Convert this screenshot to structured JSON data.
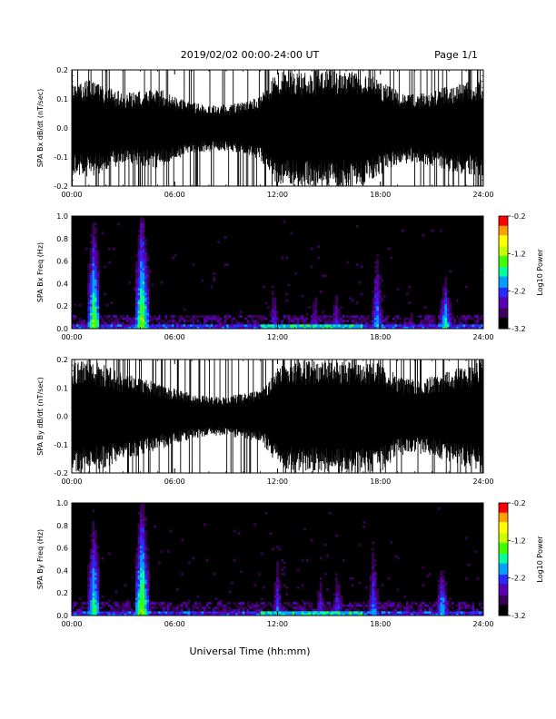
{
  "header": {
    "title": "2019/02/02  00:00-24:00 UT",
    "page": "Page 1/1"
  },
  "x_axis_label": "Universal Time (hh:mm)",
  "colors": {
    "background": "#ffffff",
    "plot_background": "#000000",
    "colorscale": [
      "#000000",
      "#3a005a",
      "#5a00b4",
      "#2a2aff",
      "#00a0ff",
      "#00ffa0",
      "#40ff00",
      "#c8ff00",
      "#ffff00",
      "#ffa000",
      "#ff0000"
    ]
  },
  "chart_data": [
    {
      "type": "line",
      "panel": "bx-waveform",
      "ylabel": "SPA Bx dB/dt (nT/sec)",
      "xlim": [
        0,
        24
      ],
      "ylim": [
        -0.2,
        0.2
      ],
      "x_ticks": [
        "00:00",
        "06:00",
        "12:00",
        "18:00",
        "24:00"
      ],
      "y_ticks": [
        "0.2",
        "0.1",
        "0.0",
        "-0.1",
        "-0.2"
      ],
      "y_tick_values": [
        0.2,
        0.1,
        0.0,
        -0.1,
        -0.2
      ],
      "envelope": {
        "x": [
          0,
          1,
          2,
          3,
          4,
          5,
          6,
          7,
          8,
          9,
          10,
          11,
          12,
          13,
          14,
          15,
          16,
          17,
          18,
          19,
          20,
          21,
          22,
          23,
          24
        ],
        "amplitude": [
          0.16,
          0.17,
          0.15,
          0.12,
          0.13,
          0.14,
          0.11,
          0.09,
          0.08,
          0.08,
          0.09,
          0.11,
          0.2,
          0.2,
          0.2,
          0.2,
          0.2,
          0.2,
          0.16,
          0.13,
          0.12,
          0.13,
          0.15,
          0.16,
          0.17
        ]
      }
    },
    {
      "type": "heatmap",
      "panel": "bx-spectrogram",
      "ylabel": "SPA Bx Freq (Hz)",
      "xlim": [
        0,
        24
      ],
      "ylim": [
        0.0,
        1.0
      ],
      "x_ticks": [
        "00:00",
        "06:00",
        "12:00",
        "18:00",
        "24:00"
      ],
      "y_ticks": [
        "1.0",
        "0.8",
        "0.6",
        "0.4",
        "0.2",
        "0.0"
      ],
      "y_tick_values": [
        1.0,
        0.8,
        0.6,
        0.4,
        0.2,
        0.0
      ],
      "colorbar_label": "Log10 Power",
      "colorbar_ticks": [
        "-0.2",
        "-1.2",
        "-2.2",
        "-3.2"
      ],
      "colorbar_tick_values": [
        -0.2,
        -1.2,
        -2.2,
        -3.2
      ],
      "zlim": [
        -3.2,
        -0.2
      ],
      "bursts": [
        {
          "t": 1.3,
          "power": -1.0,
          "height": 0.95
        },
        {
          "t": 4.1,
          "power": -0.9,
          "height": 1.0
        },
        {
          "t": 11.8,
          "power": -2.0,
          "height": 0.85
        },
        {
          "t": 14.2,
          "power": -2.0,
          "height": 0.7
        },
        {
          "t": 15.4,
          "power": -1.9,
          "height": 0.6
        },
        {
          "t": 17.8,
          "power": -1.6,
          "height": 0.95
        },
        {
          "t": 21.8,
          "power": -1.3,
          "height": 0.5
        }
      ]
    },
    {
      "type": "line",
      "panel": "by-waveform",
      "ylabel": "SPA By dB/dt (nT/sec)",
      "xlim": [
        0,
        24
      ],
      "ylim": [
        -0.2,
        0.2
      ],
      "x_ticks": [
        "00:00",
        "06:00",
        "12:00",
        "18:00",
        "24:00"
      ],
      "y_ticks": [
        "0.2",
        "0.1",
        "0.0",
        "-0.1",
        "-0.2"
      ],
      "y_tick_values": [
        0.2,
        0.1,
        0.0,
        -0.1,
        -0.2
      ],
      "envelope": {
        "x": [
          0,
          1,
          2,
          3,
          4,
          5,
          6,
          7,
          8,
          9,
          10,
          11,
          12,
          13,
          14,
          15,
          16,
          17,
          18,
          19,
          20,
          21,
          22,
          23,
          24
        ],
        "amplitude": [
          0.2,
          0.2,
          0.18,
          0.15,
          0.14,
          0.12,
          0.1,
          0.08,
          0.07,
          0.07,
          0.08,
          0.09,
          0.17,
          0.2,
          0.2,
          0.2,
          0.2,
          0.2,
          0.2,
          0.14,
          0.13,
          0.14,
          0.16,
          0.18,
          0.2
        ]
      }
    },
    {
      "type": "heatmap",
      "panel": "by-spectrogram",
      "ylabel": "SPA By Freq (Hz)",
      "xlim": [
        0,
        24
      ],
      "ylim": [
        0.0,
        1.0
      ],
      "x_ticks": [
        "00:00",
        "06:00",
        "12:00",
        "18:00",
        "24:00"
      ],
      "y_ticks": [
        "1.0",
        "0.8",
        "0.6",
        "0.4",
        "0.2",
        "0.0"
      ],
      "y_tick_values": [
        1.0,
        0.8,
        0.6,
        0.4,
        0.2,
        0.0
      ],
      "colorbar_label": "Log10 Power",
      "colorbar_ticks": [
        "-0.2",
        "-1.2",
        "-2.2",
        "-3.2"
      ],
      "colorbar_tick_values": [
        -0.2,
        -1.2,
        -2.2,
        -3.2
      ],
      "zlim": [
        -3.2,
        -0.2
      ],
      "bursts": [
        {
          "t": 1.3,
          "power": -1.2,
          "height": 0.95
        },
        {
          "t": 4.1,
          "power": -0.9,
          "height": 1.0
        },
        {
          "t": 12.0,
          "power": -1.9,
          "height": 0.9
        },
        {
          "t": 14.5,
          "power": -2.0,
          "height": 0.7
        },
        {
          "t": 15.5,
          "power": -1.8,
          "height": 0.65
        },
        {
          "t": 17.6,
          "power": -1.7,
          "height": 0.95
        },
        {
          "t": 21.6,
          "power": -1.4,
          "height": 0.55
        }
      ]
    }
  ]
}
